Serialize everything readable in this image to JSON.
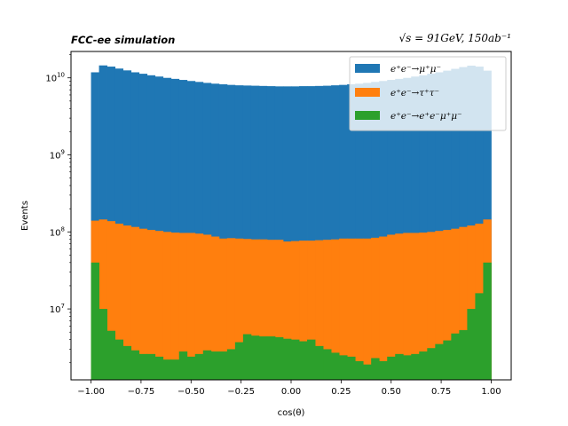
{
  "chart_data": {
    "type": "bar",
    "stacked": true,
    "yscale": "log",
    "title_left": "FCC-ee simulation",
    "title_right": "√s = 91GeV, 150ab⁻¹",
    "xlabel": "cos(θ)",
    "ylabel": "Events",
    "xlim": [
      -1.1,
      1.1
    ],
    "ylim": [
      1200000,
      22000000000
    ],
    "x_ticks": [
      "−1.00",
      "−0.75",
      "−0.50",
      "−0.25",
      "0.00",
      "0.25",
      "0.50",
      "0.75",
      "1.00"
    ],
    "y_ticks": [
      "10^7",
      "10^8",
      "10^9",
      "10^10"
    ],
    "bin_edges_range": [
      -1.0,
      1.0
    ],
    "n_bins": 50,
    "legend_position": "top-right",
    "series": [
      {
        "name": "e⁺e⁻→μ⁺μ⁻",
        "color": "#1f77b4",
        "totals": [
          11800000000,
          14500000000,
          14000000000,
          13200000000,
          12500000000,
          11800000000,
          11300000000,
          10800000000,
          10400000000,
          10000000000,
          9700000000,
          9400000000,
          9100000000,
          8850000000,
          8600000000,
          8400000000,
          8250000000,
          8100000000,
          8000000000,
          7950000000,
          7900000000,
          7850000000,
          7800000000,
          7750000000,
          7750000000,
          7750000000,
          7800000000,
          7800000000,
          7850000000,
          7900000000,
          8000000000,
          8100000000,
          8250000000,
          8400000000,
          8600000000,
          8850000000,
          9100000000,
          9400000000,
          9700000000,
          10000000000,
          10400000000,
          10800000000,
          11300000000,
          11800000000,
          12400000000,
          13100000000,
          13800000000,
          14400000000,
          14000000000,
          12400000000
        ]
      },
      {
        "name": "e⁺e⁻→τ⁺τ⁻",
        "color": "#ff7f0e",
        "totals": [
          140000000,
          145000000,
          138000000,
          128000000,
          121000000,
          116000000,
          110000000,
          106000000,
          103000000,
          100000000,
          98000000,
          97000000,
          97000000,
          95000000,
          92000000,
          87000000,
          82000000,
          83000000,
          82000000,
          81000000,
          80000000,
          80000000,
          79000000,
          79000000,
          75000000,
          76000000,
          77000000,
          77000000,
          78000000,
          79000000,
          80000000,
          82000000,
          82000000,
          82000000,
          82000000,
          84000000,
          87000000,
          92000000,
          95000000,
          97000000,
          97000000,
          98000000,
          100000000,
          103000000,
          106000000,
          110000000,
          116000000,
          121000000,
          128000000,
          145000000
        ]
      },
      {
        "name": "e⁺e⁻→e⁺e⁻μ⁺μ⁻",
        "color": "#2ca02c",
        "totals": [
          40000000,
          10000000,
          5200000,
          4000000,
          3300000,
          2900000,
          2600000,
          2600000,
          2400000,
          2200000,
          2200000,
          2800000,
          2400000,
          2600000,
          2900000,
          2800000,
          2800000,
          3000000,
          3700000,
          4700000,
          4500000,
          4400000,
          4400000,
          4300000,
          4100000,
          4000000,
          3800000,
          4000000,
          3300000,
          3000000,
          2700000,
          2500000,
          2400000,
          2100000,
          1900000,
          2300000,
          2100000,
          2400000,
          2600000,
          2500000,
          2600000,
          2800000,
          3100000,
          3500000,
          3900000,
          4800000,
          5300000,
          10000000,
          16000000,
          40000000
        ]
      }
    ]
  }
}
